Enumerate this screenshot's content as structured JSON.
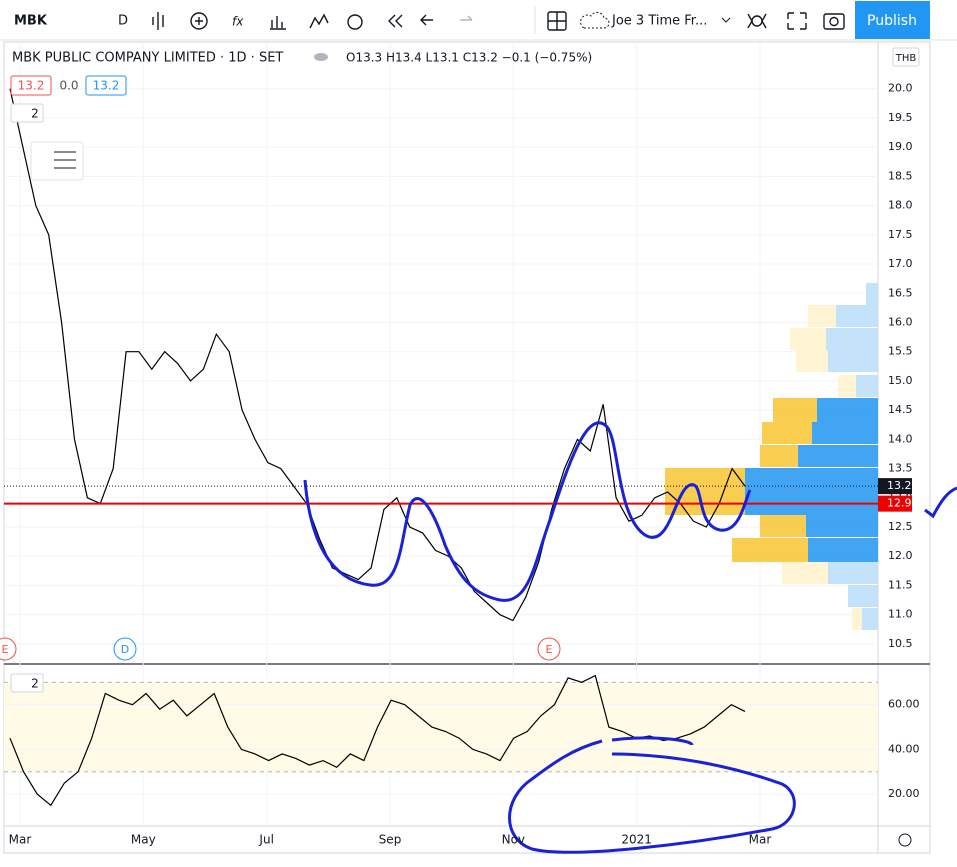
{
  "toolbar": {
    "symbol": "MBK",
    "interval": "D",
    "layout": "Joe 3 Time Fr...",
    "publish": "Publish"
  },
  "legend": {
    "title": "MBK PUBLIC COMPANY LIMITED · 1D · SET",
    "ohlc": "O13.3 H13.4 L13.1 C13.2 −0.1 (−0.75%)",
    "inputs": [
      "13.2",
      "0.0",
      "13.2"
    ],
    "indicators": "2",
    "lower_indicators": "2"
  },
  "currency": "THB",
  "events": [
    "E",
    "D",
    "E"
  ],
  "time_axis": [
    "Mar",
    "May",
    "Jul",
    "Sep",
    "Nov",
    "2021",
    "Mar"
  ],
  "chart_data": [
    {
      "type": "line",
      "series": [
        {
          "color": "#000000",
          "values": [
            20.0,
            19.0,
            18.0,
            17.5,
            16.0,
            14.0,
            13.0,
            12.9,
            13.5,
            15.5,
            15.5,
            15.2,
            15.5,
            15.3,
            15.0,
            15.2,
            15.8,
            15.5,
            14.5,
            14.0,
            13.6,
            13.5,
            13.2,
            12.9,
            12.3,
            11.8,
            11.7,
            11.6,
            11.8,
            12.8,
            13.0,
            12.5,
            12.4,
            12.1,
            12.0,
            11.8,
            11.4,
            11.2,
            11.0,
            10.9,
            11.3,
            11.9,
            12.8,
            13.5,
            14.0,
            13.8,
            14.6,
            13.0,
            12.6,
            12.7,
            13.0,
            13.1,
            12.9,
            12.6,
            12.5,
            12.9,
            13.5,
            13.2
          ]
        }
      ],
      "ylim": [
        10.19,
        20.8
      ],
      "yticks": [
        10.5,
        {
          "value": 11,
          "label": "11.0"
        },
        11.5,
        {
          "value": 12,
          "label": "12.0"
        },
        12.5,
        {
          "value": 13,
          "label": "13.0"
        },
        13.5,
        {
          "value": 14,
          "label": "14.0"
        },
        14.5,
        {
          "value": 15,
          "label": "15.0"
        },
        15.5,
        {
          "value": 16,
          "label": "16.0"
        },
        16.5,
        {
          "value": 17,
          "label": "17.0"
        },
        17.5,
        {
          "value": 18,
          "label": "18.0"
        },
        18.5,
        {
          "value": 19,
          "label": "19.0"
        },
        19.5,
        {
          "value": 20,
          "label": "20.0"
        }
      ],
      "last_price": 13.2,
      "support_line": 12.9,
      "grid": true
    },
    {
      "type": "line",
      "series": [
        {
          "color": "#000000",
          "values": [
            45,
            30,
            20,
            15,
            25,
            30,
            45,
            65,
            62,
            60,
            65,
            58,
            62,
            55,
            60,
            65,
            50,
            40,
            38,
            35,
            38,
            36,
            33,
            35,
            32,
            38,
            35,
            50,
            62,
            60,
            55,
            50,
            48,
            45,
            40,
            38,
            35,
            45,
            48,
            55,
            60,
            72,
            70,
            73,
            50,
            48,
            45,
            46,
            44,
            45,
            47,
            50,
            55,
            60,
            57
          ]
        }
      ],
      "ylim": [
        6.2,
        77.3
      ],
      "yticks": [
        {
          "value": 20,
          "label": "20.00"
        },
        {
          "value": 40,
          "label": "40.00"
        },
        {
          "value": 60,
          "label": "60.00"
        }
      ],
      "bands": [
        30,
        70
      ],
      "grid": true
    }
  ]
}
